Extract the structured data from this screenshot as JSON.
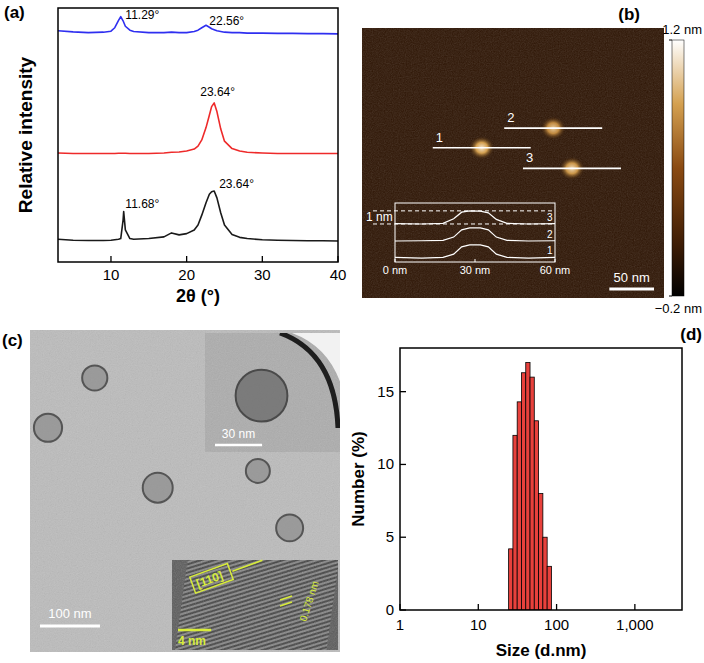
{
  "chart_data": [
    {
      "type": "line",
      "title": "(a)",
      "x_label": "2θ (°)",
      "y_label": "Relative intensity",
      "x": [
        3,
        5,
        7,
        9,
        10,
        10.5,
        11,
        11.29,
        11.6,
        11.68,
        11.9,
        12.5,
        13,
        15,
        17,
        18,
        19,
        20,
        21,
        21.5,
        22,
        22.56,
        23,
        23.3,
        23.64,
        24,
        24.5,
        25,
        26,
        27,
        28,
        30,
        32,
        34,
        36,
        38,
        40
      ],
      "series": [
        {
          "color": "#2f2ff0",
          "values": [
            9.38,
            9.33,
            9.3,
            9.32,
            9.36,
            9.5,
            9.8,
            9.95,
            9.78,
            9.72,
            9.56,
            9.4,
            9.35,
            9.3,
            9.3,
            9.32,
            9.3,
            9.3,
            9.35,
            9.4,
            9.5,
            9.6,
            9.52,
            9.46,
            9.42,
            9.38,
            9.35,
            9.32,
            9.3,
            9.3,
            9.28,
            9.28,
            9.27,
            9.27,
            9.26,
            9.26,
            9.25
          ]
        },
        {
          "color": "#ee2a2a",
          "values": [
            4.42,
            4.4,
            4.4,
            4.4,
            4.4,
            4.4,
            4.41,
            4.41,
            4.41,
            4.41,
            4.41,
            4.4,
            4.4,
            4.4,
            4.42,
            4.45,
            4.46,
            4.5,
            4.58,
            4.7,
            4.95,
            5.45,
            5.95,
            6.3,
            6.45,
            6.1,
            5.4,
            4.9,
            4.6,
            4.5,
            4.45,
            4.42,
            4.4,
            4.4,
            4.4,
            4.4,
            4.4
          ]
        },
        {
          "color": "#1a1a1a",
          "values": [
            0.92,
            0.88,
            0.87,
            0.87,
            0.88,
            0.9,
            0.92,
            0.95,
            1.7,
            2.05,
            1.3,
            0.95,
            0.92,
            0.95,
            1.02,
            1.18,
            1.1,
            1.15,
            1.3,
            1.5,
            1.9,
            2.4,
            2.75,
            2.85,
            2.88,
            2.6,
            2.0,
            1.5,
            1.12,
            1.0,
            0.95,
            0.9,
            0.88,
            0.87,
            0.86,
            0.86,
            0.85
          ]
        }
      ],
      "xlim": [
        3,
        40
      ],
      "xticks": [
        10,
        20,
        30,
        40
      ],
      "ylim": [
        0,
        10.3
      ],
      "tick_labels": "x",
      "annotations": [
        {
          "text": "11.29°",
          "x": 11.9,
          "y": 9.85
        },
        {
          "text": "22.56°",
          "x": 23.0,
          "y": 9.62
        },
        {
          "text": "23.64°",
          "x": 21.8,
          "y": 6.75
        },
        {
          "text": "23.64°",
          "x": 24.3,
          "y": 3.0
        },
        {
          "text": "11.68°",
          "x": 11.9,
          "y": 2.2
        }
      ]
    },
    {
      "type": "image",
      "title": "(b)",
      "xlim": [
        0,
        338
      ],
      "ylim": [
        0,
        302
      ],
      "scale_bar": {
        "value": 50,
        "label": "50 nm"
      },
      "colorbar": {
        "range": [
          -0.2,
          1.2
        ],
        "ticks": [
          {
            "value": 1.2,
            "label": "1.2 nm"
          },
          {
            "value": -0.2,
            "label": "−0.2 nm"
          }
        ]
      },
      "features": [
        {
          "label": "1",
          "x": 134,
          "y": 134,
          "height": 1.1
        },
        {
          "label": "2",
          "x": 214,
          "y": 112,
          "height": 1.0
        },
        {
          "label": "3",
          "x": 235,
          "y": 157,
          "height": 1.05
        }
      ],
      "inset": {
        "type": "line",
        "x": [
          0,
          10,
          18,
          22,
          25,
          28,
          32,
          35,
          38,
          42,
          50,
          60
        ],
        "xlim": [
          0,
          60
        ],
        "ylim": [
          -0.3,
          4.2
        ],
        "xticks": [
          {
            "value": 0,
            "label": "0 nm"
          },
          {
            "value": 30,
            "label": "30 nm"
          },
          {
            "value": 60,
            "label": "60 nm"
          }
        ],
        "series": [
          {
            "name": "1",
            "values": [
              0.05,
              0.0,
              0.05,
              0.3,
              0.85,
              1.0,
              1.0,
              0.85,
              0.3,
              0.05,
              0.0,
              0.05
            ]
          },
          {
            "name": "2",
            "values": [
              1.3,
              1.32,
              1.35,
              1.6,
              2.15,
              2.3,
              2.3,
              2.15,
              1.6,
              1.35,
              1.3,
              1.32
            ]
          },
          {
            "name": "3",
            "values": [
              2.62,
              2.6,
              2.65,
              3.0,
              3.5,
              3.6,
              3.58,
              3.45,
              2.95,
              2.65,
              2.6,
              2.62
            ]
          }
        ],
        "annotations": [
          {
            "text": "1 nm",
            "y": [
              2.6,
              3.6
            ]
          }
        ]
      }
    },
    {
      "type": "image",
      "title": "(c)",
      "xlim": [
        0,
        517
      ],
      "ylim": [
        0,
        537
      ],
      "scale_bar": {
        "value": 100,
        "label": "100 nm"
      },
      "particles": [
        {
          "x": 30,
          "y": 163,
          "d": 47
        },
        {
          "x": 213,
          "y": 263,
          "d": 50
        },
        {
          "x": 433,
          "y": 330,
          "d": 45
        },
        {
          "x": 108,
          "y": 80,
          "d": 42
        },
        {
          "x": 380,
          "y": 235,
          "d": 40
        }
      ],
      "insets": [
        {
          "xlim": [
            0,
            86
          ],
          "ylim": [
            0,
            76
          ],
          "scale_bar": {
            "value": 30,
            "label": "30 nm"
          },
          "particles": [
            {
              "x": 36,
              "y": 40,
              "d": 33
            }
          ]
        },
        {
          "xlim": [
            0,
            20
          ],
          "scale_bar": {
            "value": 4,
            "label": "4 nm"
          },
          "annotations": [
            {
              "text": "[110]"
            },
            {
              "text": "0.178 nm"
            }
          ]
        }
      ]
    },
    {
      "type": "histogram",
      "title": "(d)",
      "x_label": "Size (d.nm)",
      "y_label": "Number (%)",
      "bins": [
        24.4,
        27.7,
        31.4,
        35.6,
        40.4,
        45.8,
        51.9,
        58.9,
        66.8,
        75.8,
        86
      ],
      "values": [
        4.2,
        12.0,
        14.3,
        16.3,
        17.0,
        16.0,
        13.0,
        8.0,
        5.0,
        3.0
      ],
      "color": "#e8413c",
      "log": "x",
      "xlim": [
        1,
        4000
      ],
      "xticks": [
        1,
        10,
        100,
        {
          "value": 1000,
          "label": "1,000"
        }
      ],
      "ylim": [
        0,
        18
      ],
      "yticks": [
        0,
        5,
        10,
        15
      ]
    }
  ]
}
